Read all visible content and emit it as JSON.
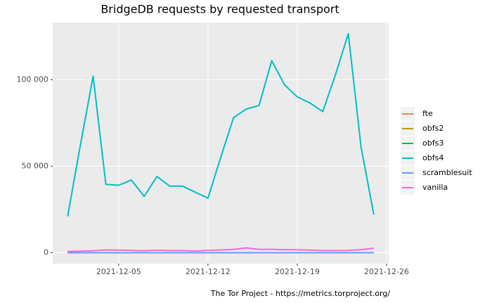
{
  "chart_data": {
    "type": "line",
    "title": "BridgeDB requests by requested transport",
    "caption": "The Tor Project - https://metrics.torproject.org/",
    "x": [
      "2021-12-01",
      "2021-12-02",
      "2021-12-03",
      "2021-12-04",
      "2021-12-05",
      "2021-12-06",
      "2021-12-07",
      "2021-12-08",
      "2021-12-09",
      "2021-12-10",
      "2021-12-11",
      "2021-12-12",
      "2021-12-13",
      "2021-12-14",
      "2021-12-15",
      "2021-12-16",
      "2021-12-17",
      "2021-12-18",
      "2021-12-19",
      "2021-12-20",
      "2021-12-21",
      "2021-12-22",
      "2021-12-23",
      "2021-12-24",
      "2021-12-25"
    ],
    "series": [
      {
        "name": "fte",
        "color": "#F8766D",
        "values": [
          0,
          0,
          0,
          0,
          0,
          0,
          0,
          0,
          0,
          0,
          0,
          0,
          0,
          0,
          0,
          0,
          0,
          0,
          0,
          0,
          0,
          0,
          0,
          0,
          0
        ]
      },
      {
        "name": "obfs2",
        "color": "#B79F00",
        "values": [
          0,
          0,
          0,
          0,
          0,
          0,
          0,
          0,
          0,
          0,
          0,
          0,
          0,
          0,
          0,
          0,
          0,
          0,
          0,
          0,
          0,
          0,
          0,
          0,
          0
        ]
      },
      {
        "name": "obfs3",
        "color": "#00BA38",
        "values": [
          0,
          0,
          0,
          0,
          0,
          0,
          0,
          0,
          0,
          0,
          0,
          0,
          0,
          0,
          0,
          0,
          0,
          0,
          0,
          0,
          0,
          0,
          0,
          0,
          0
        ]
      },
      {
        "name": "obfs4",
        "color": "#00BFC4",
        "values": [
          21000,
          62000,
          102000,
          39500,
          39000,
          42000,
          32500,
          44000,
          38500,
          38500,
          35000,
          31500,
          55000,
          78000,
          83000,
          85000,
          111000,
          97000,
          90000,
          86500,
          81500,
          103000,
          126500,
          61000,
          22000
        ]
      },
      {
        "name": "scramblesuit",
        "color": "#619CFF",
        "values": [
          0,
          0,
          0,
          0,
          0,
          0,
          0,
          0,
          0,
          0,
          0,
          0,
          0,
          0,
          0,
          0,
          0,
          0,
          0,
          0,
          0,
          0,
          0,
          0,
          0
        ]
      },
      {
        "name": "vanilla",
        "color": "#F564E3",
        "values": [
          700,
          900,
          1100,
          1600,
          1500,
          1300,
          1100,
          1400,
          1200,
          1200,
          1000,
          1300,
          1600,
          1900,
          2800,
          1900,
          2000,
          1700,
          1700,
          1500,
          1200,
          1200,
          1300,
          1800,
          2600
        ]
      }
    ],
    "xlim": [
      "2021-11-29T20:00",
      "2021-12-26T04:00"
    ],
    "xticks": [
      "2021-12-05",
      "2021-12-12",
      "2021-12-19",
      "2021-12-26"
    ],
    "ylim": [
      -6300,
      133000
    ],
    "yticks": [
      0,
      {
        "value": 50000,
        "label": "50 000"
      },
      {
        "value": 100000,
        "label": "100 000"
      }
    ],
    "grid": true,
    "legend": "right"
  }
}
